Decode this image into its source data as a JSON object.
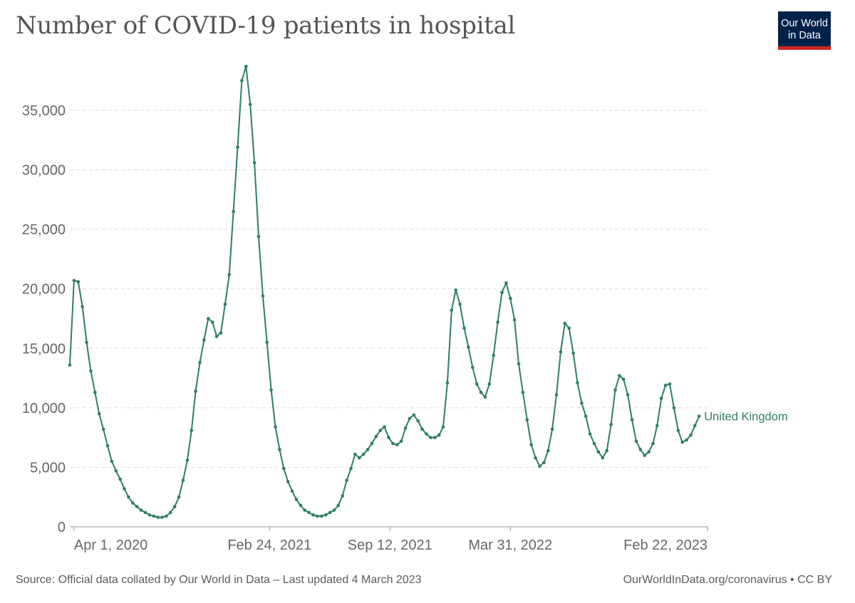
{
  "header": {
    "title": "Number of COVID-19 patients in hospital",
    "logo_line1": "Our World",
    "logo_line2": "in Data"
  },
  "footer": {
    "source": "Source: Official data collated by Our World in Data – Last updated 4 March 2023",
    "credit": "OurWorldInData.org/coronavirus • CC BY"
  },
  "colors": {
    "series": "#2e7f60",
    "grid": "#dddddd",
    "logo_bg": "#002147",
    "logo_accent": "#ce261e"
  },
  "chart_data": {
    "type": "line",
    "title": "Number of COVID-19 patients in hospital",
    "xlabel": "",
    "ylabel": "",
    "ylim": [
      0,
      38000
    ],
    "yticks": [
      0,
      5000,
      10000,
      15000,
      20000,
      25000,
      30000,
      35000
    ],
    "ytick_labels": [
      "0",
      "5,000",
      "10,000",
      "15,000",
      "20,000",
      "25,000",
      "30,000",
      "35,000"
    ],
    "grid": true,
    "x_unit": "weeks since Mar 25, 2020",
    "xlim": [
      0,
      152
    ],
    "xticks": [
      {
        "x": 1,
        "label": "Apr 1, 2020"
      },
      {
        "x": 47.6,
        "label": "Feb 24, 2021"
      },
      {
        "x": 76.3,
        "label": "Sep 12, 2021"
      },
      {
        "x": 105,
        "label": "Mar 31, 2022"
      },
      {
        "x": 152,
        "label": "Feb 22, 2023"
      }
    ],
    "series": [
      {
        "name": "United Kingdom",
        "values": [
          13600,
          20700,
          20600,
          18500,
          15500,
          13100,
          11300,
          9500,
          8200,
          6800,
          5500,
          4700,
          4000,
          3200,
          2500,
          2000,
          1700,
          1400,
          1200,
          1000,
          900,
          800,
          800,
          900,
          1200,
          1700,
          2500,
          3900,
          5600,
          8100,
          11400,
          13800,
          15700,
          17500,
          17200,
          16000,
          16300,
          18700,
          21200,
          26500,
          31900,
          37500,
          38700,
          35500,
          30600,
          24400,
          19400,
          15500,
          11500,
          8400,
          6500,
          4900,
          3800,
          3000,
          2300,
          1800,
          1400,
          1200,
          1000,
          900,
          900,
          1000,
          1200,
          1400,
          1800,
          2600,
          3900,
          4900,
          6100,
          5800,
          6100,
          6500,
          7000,
          7600,
          8100,
          8400,
          7500,
          7000,
          6900,
          7200,
          8300,
          9100,
          9400,
          8900,
          8200,
          7800,
          7500,
          7500,
          7700,
          8400,
          12100,
          18200,
          19900,
          18700,
          16700,
          15100,
          13400,
          12000,
          11300,
          10900,
          12000,
          14400,
          17200,
          19700,
          20500,
          19200,
          17400,
          13700,
          11300,
          9000,
          6900,
          5800,
          5100,
          5400,
          6400,
          8200,
          11100,
          14700,
          17100,
          16700,
          14600,
          12100,
          10400,
          9300,
          7800,
          7000,
          6300,
          5800,
          6400,
          8600,
          11500,
          12700,
          12400,
          11100,
          9000,
          7200,
          6500,
          6000,
          6300,
          7000,
          8500,
          10800,
          11900,
          12000,
          10000,
          8100,
          7100,
          7300,
          7700,
          8500,
          9300
        ]
      }
    ]
  }
}
